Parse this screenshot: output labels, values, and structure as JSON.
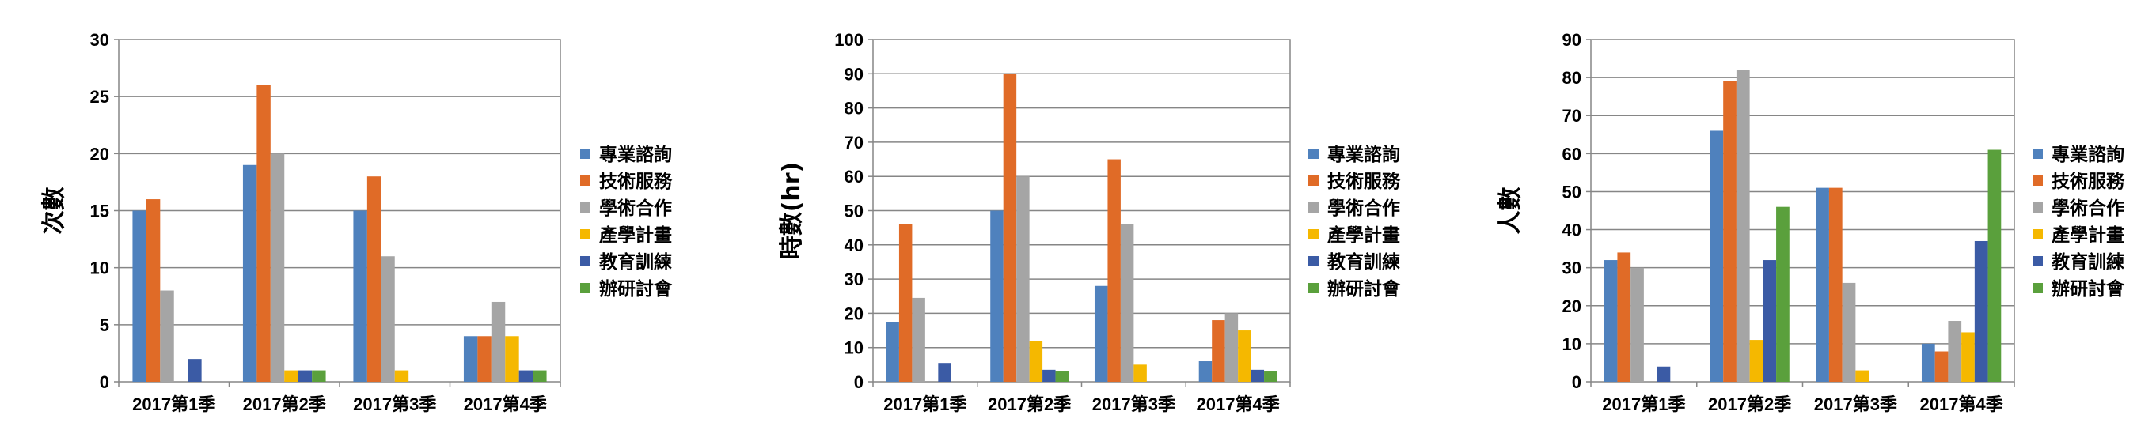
{
  "colors": [
    "#4f81bd",
    "#e06b27",
    "#a5a5a5",
    "#f5b800",
    "#3b5ba5",
    "#5aa03c"
  ],
  "chart_data": [
    {
      "type": "bar",
      "ylabel": "次數",
      "ylim": [
        0,
        30
      ],
      "yticks": [
        "0",
        "5",
        "10",
        "15",
        "20",
        "25",
        "30"
      ],
      "grid": true,
      "legend": "right",
      "categories": [
        "2017第1季",
        "2017第2季",
        "2017第3季",
        "2017第4季"
      ],
      "series": [
        {
          "name": "專業諮詢",
          "values": [
            15,
            19,
            15,
            4
          ]
        },
        {
          "name": "技術服務",
          "values": [
            16,
            26,
            18,
            4
          ]
        },
        {
          "name": "學術合作",
          "values": [
            8,
            20,
            11,
            7
          ]
        },
        {
          "name": "產學計畫",
          "values": [
            0,
            1,
            1,
            4
          ]
        },
        {
          "name": "教育訓練",
          "values": [
            2,
            1,
            0,
            1
          ]
        },
        {
          "name": "辦研討會",
          "values": [
            0,
            1,
            0,
            1
          ]
        }
      ]
    },
    {
      "type": "bar",
      "ylabel": "時數(hr)",
      "ylim": [
        0,
        100
      ],
      "yticks": [
        "0",
        "10",
        "20",
        "30",
        "40",
        "50",
        "60",
        "70",
        "80",
        "90",
        "100"
      ],
      "grid": true,
      "legend": "right",
      "categories": [
        "2017第1季",
        "2017第2季",
        "2017第3季",
        "2017第4季"
      ],
      "series": [
        {
          "name": "專業諮詢",
          "values": [
            17.5,
            50,
            28,
            6
          ]
        },
        {
          "name": "技術服務",
          "values": [
            46,
            90,
            65,
            18
          ]
        },
        {
          "name": "學術合作",
          "values": [
            24.5,
            60,
            46,
            20
          ]
        },
        {
          "name": "產學計畫",
          "values": [
            0,
            12,
            5,
            15
          ]
        },
        {
          "name": "教育訓練",
          "values": [
            5.5,
            3.5,
            0,
            3.5
          ]
        },
        {
          "name": "辦研討會",
          "values": [
            0,
            3,
            0,
            3
          ]
        }
      ]
    },
    {
      "type": "bar",
      "ylabel": "人數",
      "ylim": [
        0,
        90
      ],
      "yticks": [
        "0",
        "10",
        "20",
        "30",
        "40",
        "50",
        "60",
        "70",
        "80",
        "90"
      ],
      "grid": true,
      "legend": "right",
      "categories": [
        "2017第1季",
        "2017第2季",
        "2017第3季",
        "2017第4季"
      ],
      "series": [
        {
          "name": "專業諮詢",
          "values": [
            32,
            66,
            51,
            10
          ]
        },
        {
          "name": "技術服務",
          "values": [
            34,
            79,
            51,
            8
          ]
        },
        {
          "name": "學術合作",
          "values": [
            30,
            82,
            26,
            16
          ]
        },
        {
          "name": "產學計畫",
          "values": [
            0,
            11,
            3,
            13
          ]
        },
        {
          "name": "教育訓練",
          "values": [
            4,
            32,
            0,
            37
          ]
        },
        {
          "name": "辦研討會",
          "values": [
            0,
            46,
            0,
            61
          ]
        }
      ]
    }
  ]
}
